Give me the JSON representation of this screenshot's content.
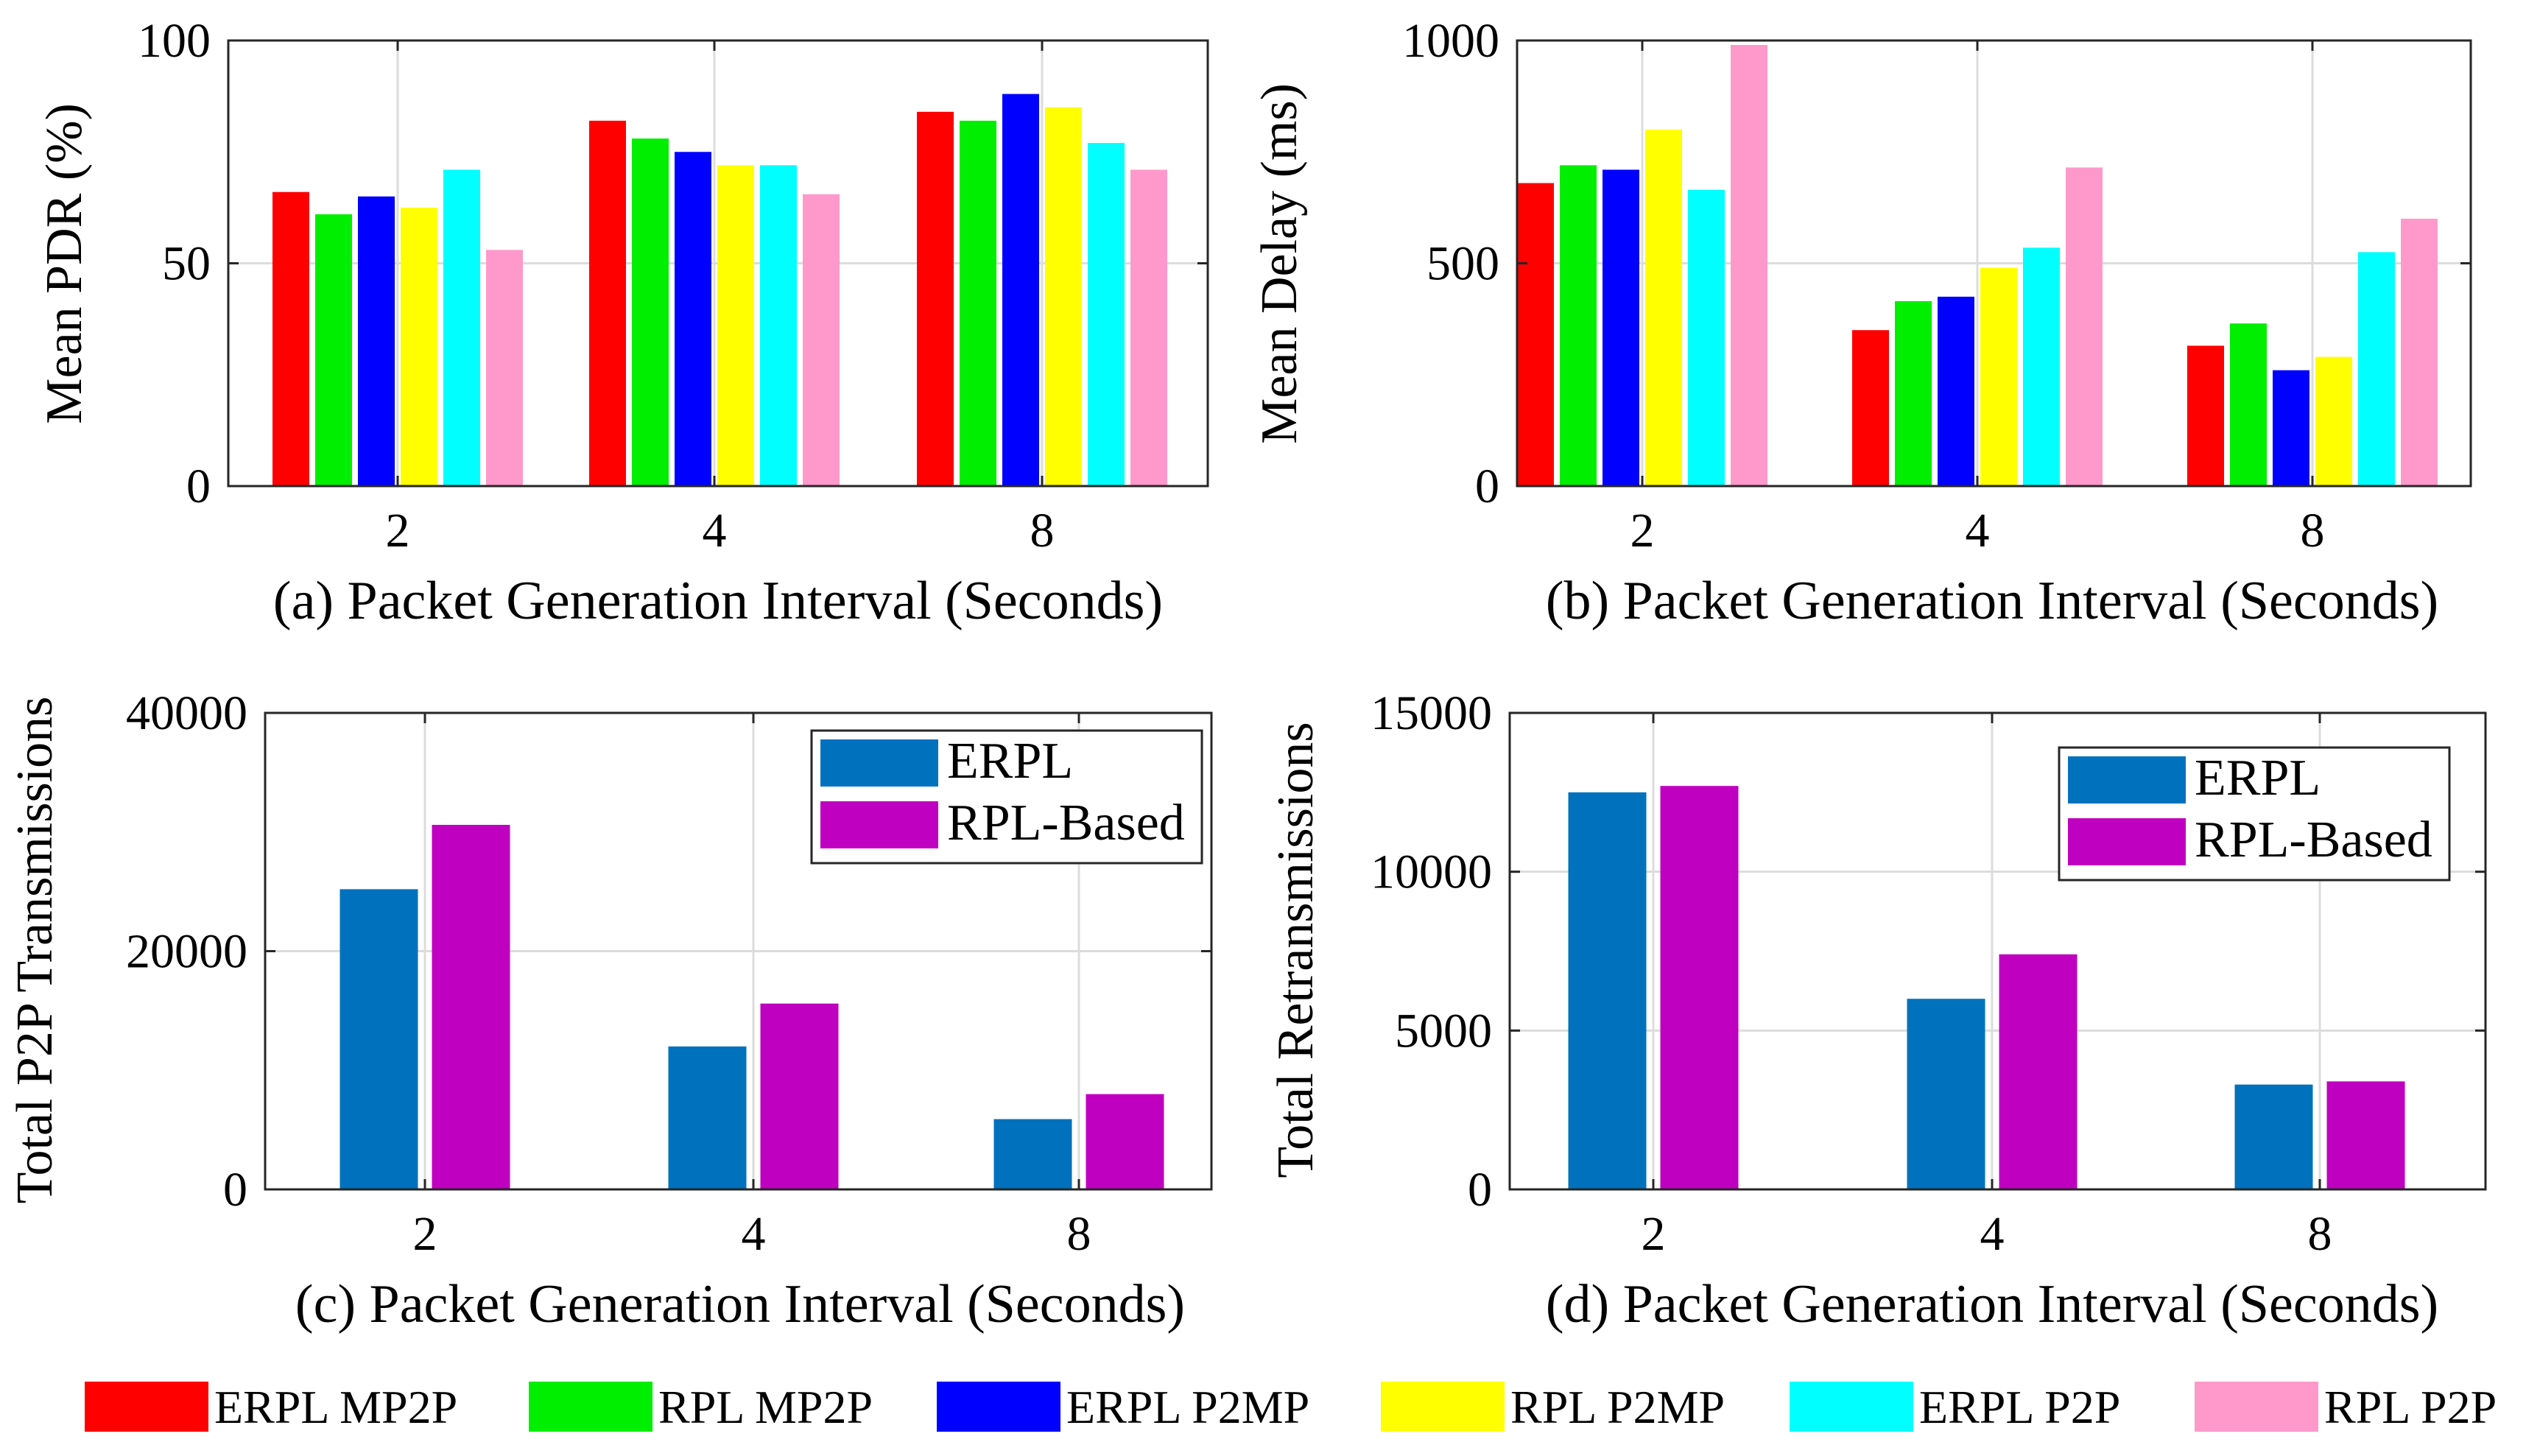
{
  "chart_data": [
    {
      "id": "a",
      "type": "bar",
      "categories": [
        "2",
        "4",
        "8"
      ],
      "ylabel": "Mean PDR (%)",
      "caption": "(a) Packet Generation Interval (Seconds)",
      "ylim": [
        0,
        100
      ],
      "yticks": [
        0,
        50,
        100
      ],
      "grid": true,
      "series": [
        {
          "name": "ERPL MP2P",
          "color": "#ff0000",
          "values": [
            66,
            82,
            84
          ]
        },
        {
          "name": "RPL MP2P",
          "color": "#00ee00",
          "values": [
            61,
            78,
            82
          ]
        },
        {
          "name": "ERPL P2MP",
          "color": "#0000ff",
          "values": [
            65,
            75,
            88
          ]
        },
        {
          "name": "RPL P2MP",
          "color": "#ffff00",
          "values": [
            62.5,
            72,
            85
          ]
        },
        {
          "name": "ERPL P2P",
          "color": "#00ffff",
          "values": [
            71,
            72,
            77
          ]
        },
        {
          "name": "RPL P2P",
          "color": "#ff99cc",
          "values": [
            53,
            65.5,
            71
          ]
        }
      ]
    },
    {
      "id": "b",
      "type": "bar",
      "categories": [
        "2",
        "4",
        "8"
      ],
      "ylabel": "Mean Delay (ms)",
      "caption": "(b) Packet Generation Interval (Seconds)",
      "ylim": [
        0,
        1000
      ],
      "yticks": [
        0,
        500,
        1000
      ],
      "grid": true,
      "series": [
        {
          "name": "ERPL MP2P",
          "color": "#ff0000",
          "values": [
            680,
            350,
            315
          ]
        },
        {
          "name": "RPL MP2P",
          "color": "#00ee00",
          "values": [
            720,
            415,
            365
          ]
        },
        {
          "name": "ERPL P2MP",
          "color": "#0000ff",
          "values": [
            710,
            425,
            260
          ]
        },
        {
          "name": "RPL P2MP",
          "color": "#ffff00",
          "values": [
            800,
            490,
            290
          ]
        },
        {
          "name": "ERPL P2P",
          "color": "#00ffff",
          "values": [
            665,
            535,
            525
          ]
        },
        {
          "name": "RPL P2P",
          "color": "#ff99cc",
          "values": [
            990,
            715,
            600
          ]
        }
      ]
    },
    {
      "id": "c",
      "type": "bar",
      "categories": [
        "2",
        "4",
        "8"
      ],
      "ylabel": "Total P2P Transmissions",
      "caption": "(c) Packet Generation Interval (Seconds)",
      "ylim": [
        0,
        40000
      ],
      "yticks": [
        0,
        20000,
        40000
      ],
      "grid": true,
      "legend_position": "top-right",
      "series": [
        {
          "name": "ERPL",
          "color": "#0072bd",
          "values": [
            25200,
            12000,
            5900
          ]
        },
        {
          "name": "RPL-Based",
          "color": "#c000c0",
          "values": [
            30600,
            15600,
            8000
          ]
        }
      ]
    },
    {
      "id": "d",
      "type": "bar",
      "categories": [
        "2",
        "4",
        "8"
      ],
      "ylabel": "Total Retransmissions",
      "caption": "(d) Packet Generation Interval (Seconds)",
      "ylim": [
        0,
        15000
      ],
      "yticks": [
        0,
        5000,
        10000,
        15000
      ],
      "grid": true,
      "legend_position": "top-right",
      "series": [
        {
          "name": "ERPL",
          "color": "#0072bd",
          "values": [
            12500,
            6000,
            3300
          ]
        },
        {
          "name": "RPL-Based",
          "color": "#c000c0",
          "values": [
            12700,
            7400,
            3400
          ]
        }
      ]
    }
  ],
  "shared_legend": [
    {
      "label": "ERPL MP2P",
      "color": "#ff0000"
    },
    {
      "label": "RPL MP2P",
      "color": "#00ee00"
    },
    {
      "label": "ERPL P2MP",
      "color": "#0000ff"
    },
    {
      "label": "RPL P2MP",
      "color": "#ffff00"
    },
    {
      "label": "ERPL P2P",
      "color": "#00ffff"
    },
    {
      "label": "RPL P2P",
      "color": "#ff99cc"
    }
  ]
}
